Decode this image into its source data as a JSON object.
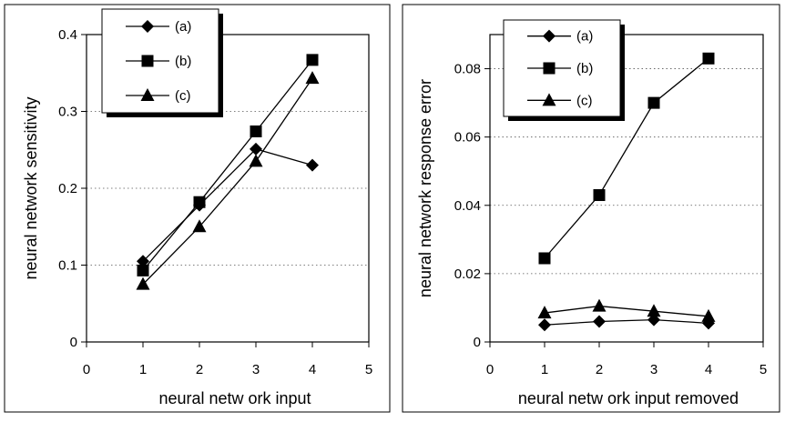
{
  "chart_data": [
    {
      "type": "line",
      "xlabel": "neural netw ork input",
      "ylabel": "neural network sensitivity",
      "xlim": [
        0,
        5
      ],
      "ylim": [
        0,
        0.4
      ],
      "xticks": [
        "0",
        "1",
        "2",
        "3",
        "4",
        "5"
      ],
      "yticks": [
        "0",
        "0.1",
        "0.2",
        "0.3",
        "0.4"
      ],
      "grid": "horizontal dotted",
      "legend_position": "top-left",
      "series": [
        {
          "name": "(a)",
          "marker": "diamond",
          "x": [
            1,
            2,
            3,
            4
          ],
          "values": [
            0.105,
            0.178,
            0.251,
            0.23
          ]
        },
        {
          "name": "(b)",
          "marker": "square",
          "x": [
            1,
            2,
            3,
            4
          ],
          "values": [
            0.093,
            0.182,
            0.274,
            0.367
          ]
        },
        {
          "name": "(c)",
          "marker": "triangle",
          "x": [
            1,
            2,
            3,
            4
          ],
          "values": [
            0.075,
            0.15,
            0.235,
            0.343
          ]
        }
      ]
    },
    {
      "type": "line",
      "xlabel": "neural netw ork input removed",
      "ylabel": "neural network response error",
      "xlim": [
        0,
        5
      ],
      "ylim": [
        0,
        0.09
      ],
      "xticks": [
        "0",
        "1",
        "2",
        "3",
        "4",
        "5"
      ],
      "yticks": [
        "0",
        "0.02",
        "0.04",
        "0.06",
        "0.08"
      ],
      "grid": "horizontal dotted",
      "legend_position": "top-left",
      "series": [
        {
          "name": "(a)",
          "marker": "diamond",
          "x": [
            1,
            2,
            3,
            4
          ],
          "values": [
            0.005,
            0.006,
            0.0065,
            0.0055
          ]
        },
        {
          "name": "(b)",
          "marker": "square",
          "x": [
            1,
            2,
            3,
            4
          ],
          "values": [
            0.0245,
            0.043,
            0.07,
            0.083
          ]
        },
        {
          "name": "(c)",
          "marker": "triangle",
          "x": [
            1,
            2,
            3,
            4
          ],
          "values": [
            0.0085,
            0.0105,
            0.009,
            0.0075
          ]
        }
      ]
    }
  ]
}
